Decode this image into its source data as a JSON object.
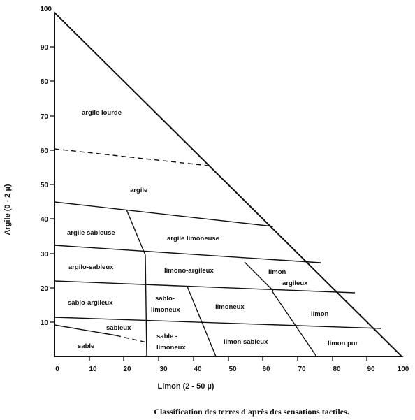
{
  "chart": {
    "y_axis_title": "Argile (0 - 2 µ)",
    "x_axis_title": "Limon (2 - 50 µ)",
    "caption": "Classification des terres d'après des sensations tactiles.",
    "y_ticks": [
      "10",
      "20",
      "30",
      "40",
      "50",
      "60",
      "70",
      "80",
      "90",
      "100"
    ],
    "x_ticks": [
      "0",
      "10",
      "20",
      "30",
      "40",
      "50",
      "60",
      "70",
      "80",
      "90",
      "100"
    ]
  },
  "zones": {
    "argile_lourde": "argile lourde",
    "argile": "argile",
    "argile_sableuse": "argile sableuse",
    "argile_limoneuse": "argile limoneuse",
    "argilo_sableux": "argilo-sableux",
    "limono_argileux": "limono-argileux",
    "limon_argileux_1": "limon",
    "limon_argileux_2": "argileux",
    "sablo_argileux": "sablo-argileux",
    "sablo_limoneux_top_1": "sablo-",
    "sablo_limoneux_top_2": "limoneux",
    "limoneux": "limoneux",
    "limon": "limon",
    "sableux": "sableux",
    "sable": "sable",
    "sable_limoneux_1": "sable -",
    "sable_limoneux_2": "limoneux",
    "limon_sableux": "limon sableux",
    "limon_pur": "limon pur"
  }
}
